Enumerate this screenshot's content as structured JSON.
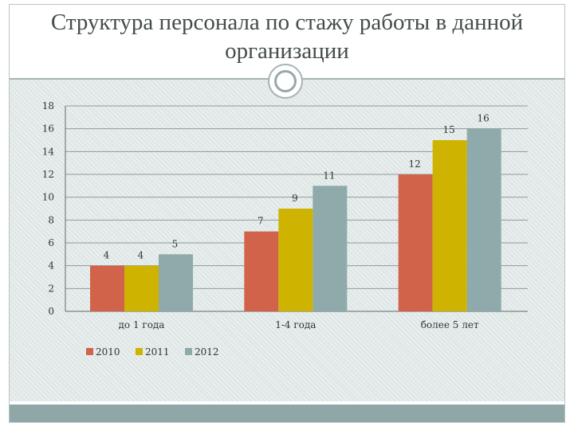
{
  "slide": {
    "title": "Структура персонала по стажу работы в данной организации"
  },
  "chart_data": {
    "type": "bar",
    "categories": [
      "до 1 года",
      "1-4 года",
      "более 5 лет"
    ],
    "series": [
      {
        "name": "2010",
        "color": "#d2634b",
        "values": [
          4,
          7,
          12
        ]
      },
      {
        "name": "2011",
        "color": "#ceb400",
        "values": [
          4,
          9,
          15
        ]
      },
      {
        "name": "2012",
        "color": "#8eaaaa",
        "values": [
          5,
          11,
          16
        ]
      }
    ],
    "ylim": [
      0,
      18
    ],
    "yticks": [
      0,
      2,
      4,
      6,
      8,
      10,
      12,
      14,
      16,
      18
    ],
    "grid": true,
    "legend": "bottom-left",
    "data_labels": true,
    "title": "",
    "xlabel": "",
    "ylabel": ""
  }
}
